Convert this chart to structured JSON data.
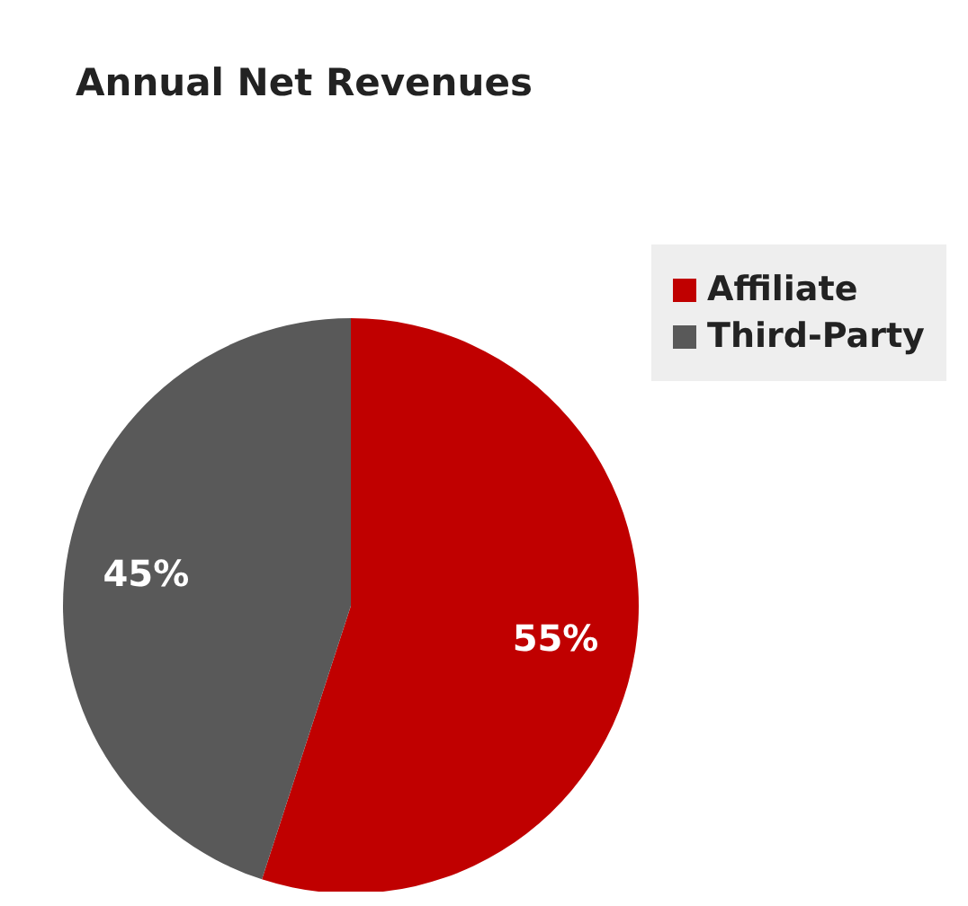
{
  "chart_data": {
    "type": "pie",
    "title": "Annual Net Revenues",
    "categories": [
      "Affiliate",
      "Third-Party"
    ],
    "values": [
      55,
      45
    ],
    "colors": [
      "#c00000",
      "#595959"
    ],
    "value_labels": [
      "55%",
      "45%"
    ],
    "legend": "top right"
  }
}
